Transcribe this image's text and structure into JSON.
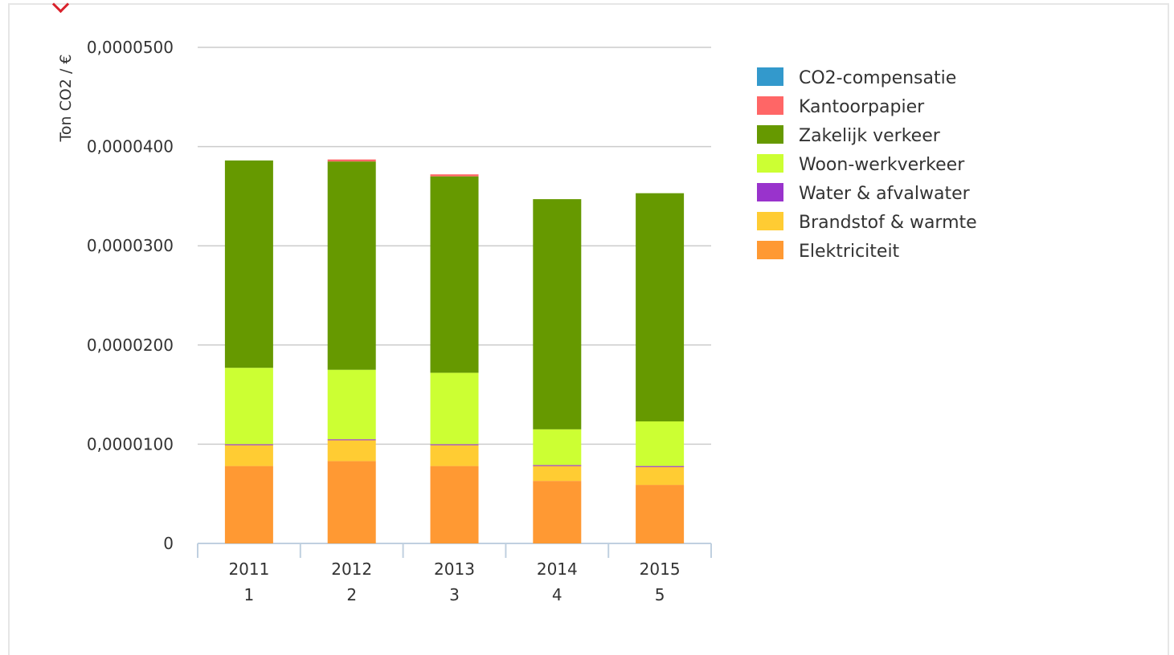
{
  "chart_data": {
    "type": "bar",
    "stacked": true,
    "ylabel": "Ton CO2 / €",
    "ylim": [
      0,
      5e-05
    ],
    "yticks": [
      "0",
      "0,0000100",
      "0,0000200",
      "0,0000300",
      "0,0000400",
      "0,0000500"
    ],
    "categories": [
      {
        "year": "2011",
        "index": "1"
      },
      {
        "year": "2012",
        "index": "2"
      },
      {
        "year": "2013",
        "index": "3"
      },
      {
        "year": "2014",
        "index": "4"
      },
      {
        "year": "2015",
        "index": "5"
      }
    ],
    "series": [
      {
        "name": "Elektriciteit",
        "color": "#ff9933",
        "values": [
          7.8e-06,
          8.3e-06,
          7.8e-06,
          6.3e-06,
          5.9e-06
        ]
      },
      {
        "name": "Brandstof & warmte",
        "color": "#ffcc33",
        "values": [
          2.1e-06,
          2.1e-06,
          2.1e-06,
          1.5e-06,
          1.8e-06
        ]
      },
      {
        "name": "Water & afvalwater",
        "color": "#9933cc",
        "values": [
          1e-07,
          1e-07,
          1e-07,
          1e-07,
          1e-07
        ]
      },
      {
        "name": "Woon-werkverkeer",
        "color": "#ccff33",
        "values": [
          7.7e-06,
          7e-06,
          7.2e-06,
          3.6e-06,
          4.5e-06
        ]
      },
      {
        "name": "Zakelijk verkeer",
        "color": "#669900",
        "values": [
          2.09e-05,
          2.1e-05,
          1.98e-05,
          2.32e-05,
          2.3e-05
        ]
      },
      {
        "name": "Kantoorpapier",
        "color": "#ff6666",
        "values": [
          0.0,
          2e-07,
          2e-07,
          0.0,
          0.0
        ]
      },
      {
        "name": "CO2-compensatie",
        "color": "#3399cc",
        "values": [
          0,
          0,
          0,
          0,
          0
        ]
      }
    ],
    "legend": {
      "position": "right"
    },
    "grid": true
  }
}
